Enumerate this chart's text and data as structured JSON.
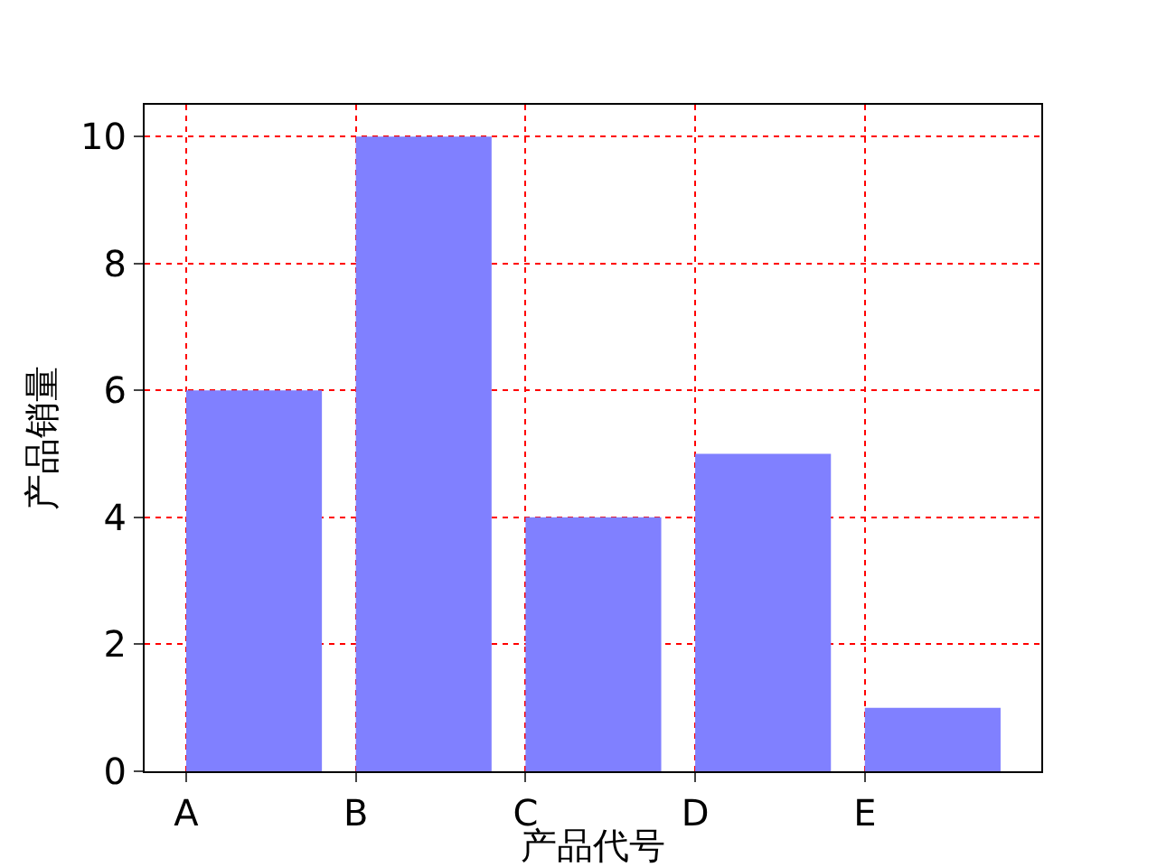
{
  "chart_data": {
    "type": "bar",
    "xlabel": "产品代号",
    "ylabel": "产品销量",
    "categories": [
      "A",
      "B",
      "C",
      "D",
      "E"
    ],
    "values": [
      6,
      10,
      4,
      5,
      1
    ],
    "color": "#8080ff",
    "ylim": [
      0,
      10.5
    ],
    "yticks": [
      0,
      2,
      4,
      6,
      8,
      10
    ],
    "grid": true
  }
}
